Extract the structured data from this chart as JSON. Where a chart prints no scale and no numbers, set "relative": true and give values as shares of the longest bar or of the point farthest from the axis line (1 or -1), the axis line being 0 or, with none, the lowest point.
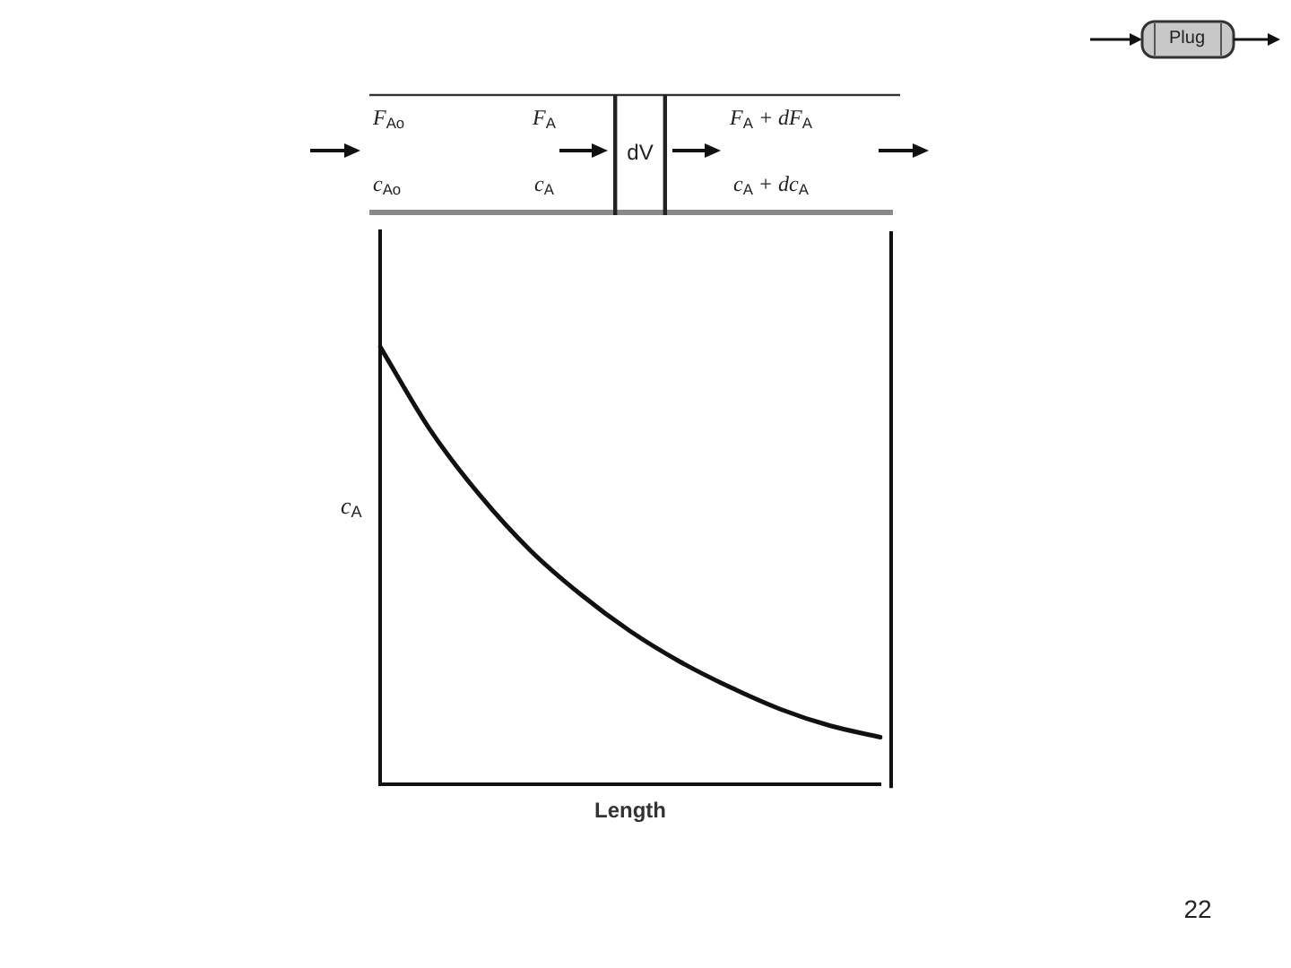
{
  "chart_data": {
    "type": "line",
    "xlabel": "Length",
    "ylabel": "c$_{A}$",
    "categories": [
      null,
      null,
      null,
      null,
      null,
      null,
      null,
      null,
      null,
      null,
      null
    ],
    "series": [
      {
        "color": "#111111",
        "values": [
          1,
          0.81,
          0.66,
          0.535,
          0.435,
          0.35,
          0.28,
          0.222,
          0.172,
          0.134,
          0.108
        ]
      }
    ],
    "relative": true,
    "marker": "none",
    "grid": false,
    "legend": false,
    "annotations": [
      "Plug",
      "F$_{Ao}$",
      "F$_{A}$",
      "dV",
      "F$_{A}$ + dF$_{A}$",
      "c$_{Ao}$",
      "c$_{A}$",
      "c$_{A}$ + dc$_{A}$",
      "22"
    ]
  }
}
